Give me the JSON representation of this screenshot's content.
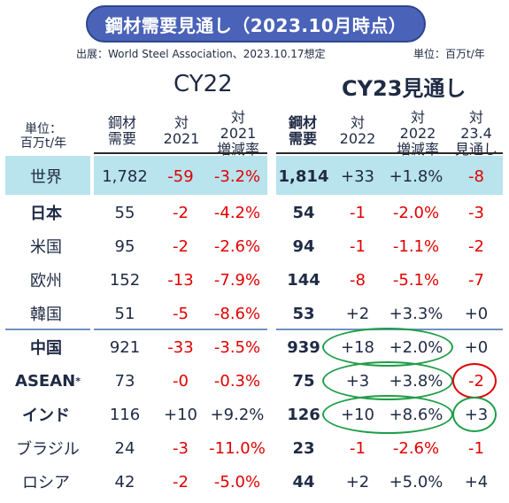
{
  "title": "鋼材需要見通し（2023.10月時点）",
  "source": "出展：World Steel Association、2023.10.17想定",
  "unit_top": "単位：百万t/年",
  "cy22_label": "CY22",
  "cy23_label": "CY23見通し",
  "headers": {
    "unit_line1": "単位：",
    "unit_line2": "百万t/年",
    "cy22_demand": [
      "鋼材",
      "需要"
    ],
    "cy22_vs2021": [
      "対",
      "2021"
    ],
    "cy22_rate": [
      "対",
      "2021",
      "増減率"
    ],
    "cy23_demand": [
      "鋼材",
      "需要"
    ],
    "cy23_vs2022": [
      "対",
      "2022"
    ],
    "cy23_rate": [
      "対",
      "2022",
      "増減率"
    ],
    "cy23_vs234": [
      "対",
      "23.4",
      "見通し"
    ]
  },
  "rows": [
    {
      "region": "世界",
      "d22": "1,782",
      "v21": "-59",
      "r21": "-3.2%",
      "d23": "1,814",
      "v22": "+33",
      "r22": "+1.8%",
      "v234": "-8"
    },
    {
      "region": "日本",
      "d22": "55",
      "v21": "-2",
      "r21": "-4.2%",
      "d23": "54",
      "v22": "-1",
      "r22": "-2.0%",
      "v234": "-3"
    },
    {
      "region": "米国",
      "d22": "95",
      "v21": "-2",
      "r21": "-2.6%",
      "d23": "94",
      "v22": "-1",
      "r22": "-1.1%",
      "v234": "-2"
    },
    {
      "region": "欧州",
      "d22": "152",
      "v21": "-13",
      "r21": "-7.9%",
      "d23": "144",
      "v22": "-8",
      "r22": "-5.1%",
      "v234": "-7"
    },
    {
      "region": "韓国",
      "d22": "51",
      "v21": "-5",
      "r21": "-8.6%",
      "d23": "53",
      "v22": "+2",
      "r22": "+3.3%",
      "v234": "+0"
    },
    {
      "region": "中国",
      "d22": "921",
      "v21": "-33",
      "r21": "-3.5%",
      "d23": "939",
      "v22": "+18",
      "r22": "+2.0%",
      "v234": "+0"
    },
    {
      "region": "ASEAN",
      "d22": "73",
      "v21": "-0",
      "r21": "-0.3%",
      "d23": "75",
      "v22": "+3",
      "r22": "+3.8%",
      "v234": "-2"
    },
    {
      "region": "インド",
      "d22": "116",
      "v21": "+10",
      "r21": "+9.2%",
      "d23": "126",
      "v22": "+10",
      "r22": "+8.6%",
      "v234": "+3"
    },
    {
      "region": "ブラジル",
      "d22": "24",
      "v21": "-3",
      "r21": "-11.0%",
      "d23": "23",
      "v22": "-1",
      "r22": "-2.6%",
      "v234": "-1"
    },
    {
      "region": "ロシア",
      "d22": "42",
      "v21": "-2",
      "r21": "-5.0%",
      "d23": "44",
      "v22": "+2",
      "r22": "+5.0%",
      "v234": "+4"
    }
  ],
  "asean_mark": "*",
  "colors": {
    "accent": "#4a63b8",
    "negative": "#e00000",
    "highlight_row": "#b9e3ed",
    "circle_green": "#1f9e48",
    "circle_red": "#e00000"
  }
}
